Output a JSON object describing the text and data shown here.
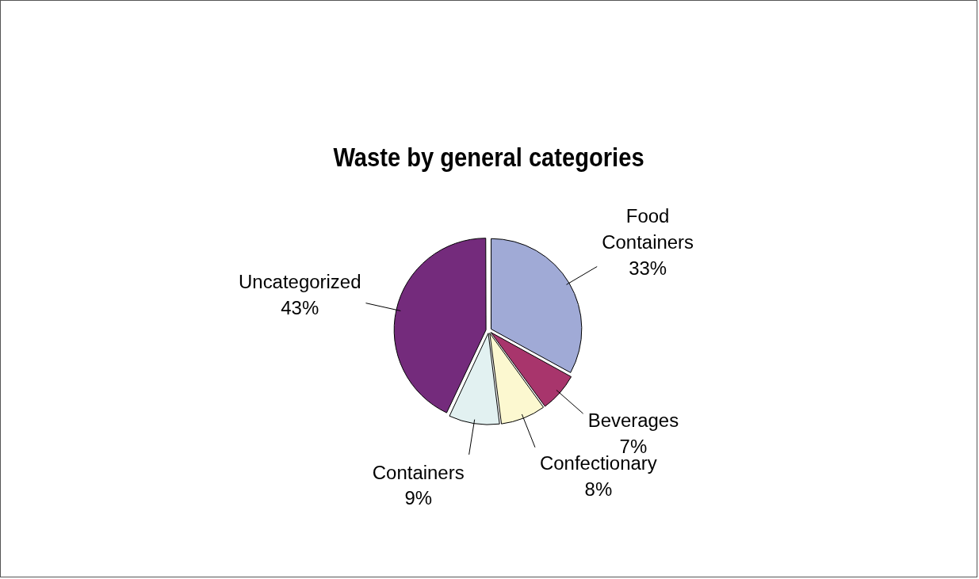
{
  "chart_data": {
    "type": "pie",
    "title": "Waste by general categories",
    "categories": [
      "Food Containers",
      "Beverages",
      "Confectionary",
      "Containers",
      "Uncategorized"
    ],
    "values": [
      33,
      7,
      8,
      9,
      43
    ],
    "value_labels": [
      "33%",
      "7%",
      "8%",
      "9%",
      "43%"
    ],
    "colors": [
      "#a0aad6",
      "#a8356c",
      "#fcf8d0",
      "#e2f1f1",
      "#742b7c"
    ],
    "legend": false
  }
}
